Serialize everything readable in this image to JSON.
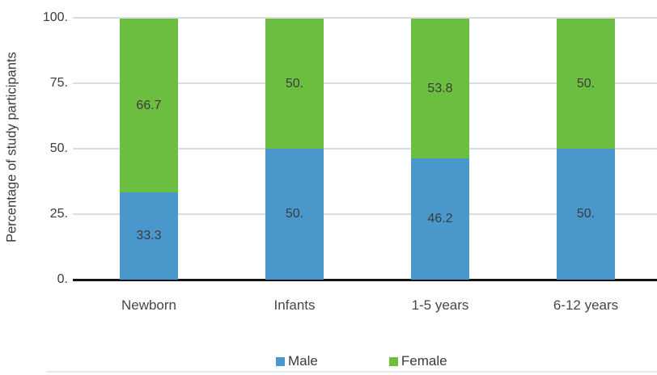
{
  "chart_data": {
    "type": "bar",
    "stacked": true,
    "title": "",
    "xlabel": "",
    "ylabel": "Percentage of study participants",
    "ylim": [
      0,
      100
    ],
    "grid": "horizontal",
    "legend_position": "bottom",
    "categories": [
      "Newborn",
      "Infants",
      "1-5 years",
      "6-12 years"
    ],
    "series": [
      {
        "name": "Male",
        "color": "#4a98cb",
        "values": [
          33.3,
          50,
          46.2,
          50
        ],
        "labels": [
          "33.3",
          "50.",
          "46.2",
          "50."
        ]
      },
      {
        "name": "Female",
        "color": "#6cbe41",
        "values": [
          66.7,
          50,
          53.8,
          50
        ],
        "labels": [
          "66.7",
          "50.",
          "53.8",
          "50."
        ]
      }
    ],
    "yticks": [
      {
        "value": 100,
        "label": "100."
      },
      {
        "value": 75,
        "label": "75."
      },
      {
        "value": 50,
        "label": "50."
      },
      {
        "value": 25,
        "label": "25."
      },
      {
        "value": 0,
        "label": "0."
      }
    ]
  },
  "colors": {
    "male": "#4a98cb",
    "female": "#6cbe41",
    "gridline": "#dcdcdc",
    "axis_line": "#141414",
    "text": "#3b3b3b"
  }
}
